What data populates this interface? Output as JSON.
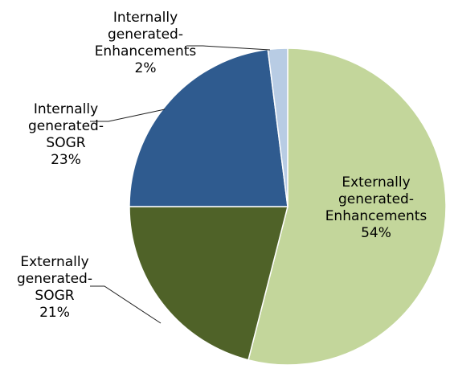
{
  "chart_data": {
    "type": "pie",
    "title": "",
    "start": "top",
    "direction": "clockwise",
    "slices": [
      {
        "label_lines": [
          "Externally",
          "generated-",
          "Enhancements"
        ],
        "pct_text": "54%",
        "value": 54,
        "color": "#c3d69b"
      },
      {
        "label_lines": [
          "Externally",
          "generated-",
          "SOGR"
        ],
        "pct_text": "21%",
        "value": 21,
        "color": "#4f6228"
      },
      {
        "label_lines": [
          "Internally",
          "generated-",
          "SOGR"
        ],
        "pct_text": "23%",
        "value": 23,
        "color": "#2f5b8f"
      },
      {
        "label_lines": [
          "Internally",
          "generated-",
          "Enhancements"
        ],
        "pct_text": "2%",
        "value": 2,
        "color": "#b8cce4"
      }
    ]
  }
}
